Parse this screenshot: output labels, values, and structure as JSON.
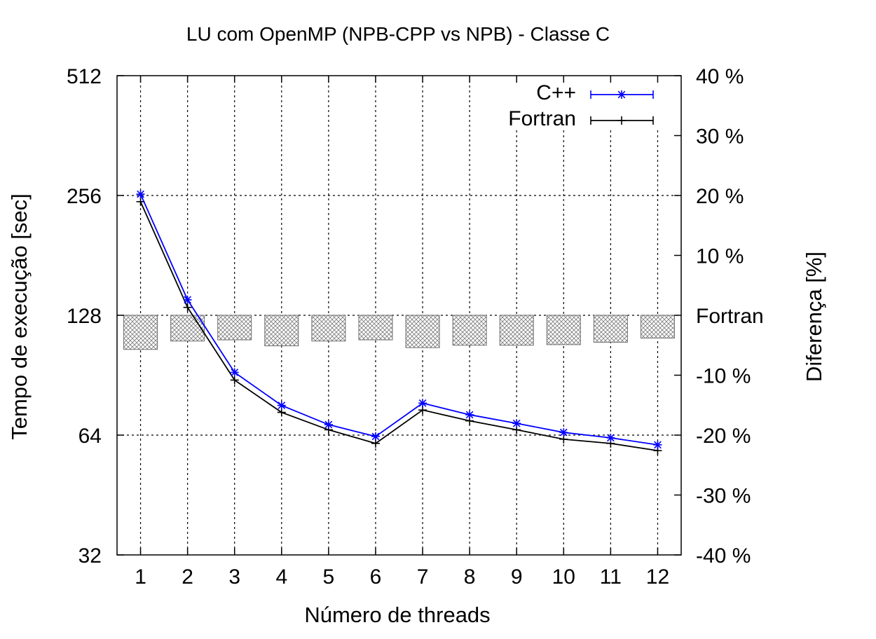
{
  "chart_data": {
    "type": "line",
    "title": "LU com OpenMP (NPB-CPP vs NPB) - Classe C",
    "xlabel": "Número de threads",
    "ylabel": "Tempo de execução [sec]",
    "y2label": "Diferença [%]",
    "categories": [
      "1",
      "2",
      "3",
      "4",
      "5",
      "6",
      "7",
      "8",
      "9",
      "10",
      "11",
      "12"
    ],
    "y_scale": "log2",
    "ylim": [
      32,
      512
    ],
    "y_ticks": [
      "32",
      "64",
      "128",
      "256",
      "512"
    ],
    "y2lim": [
      -40,
      40
    ],
    "y2_ticks": [
      "-40 %",
      "-30 %",
      "-20 %",
      "-10 %",
      "Fortran",
      "10 %",
      "20 %",
      "30 %",
      "40 %"
    ],
    "grid": true,
    "legend_position": "top-right",
    "series": [
      {
        "name": "C++",
        "color": "#0000ff",
        "marker": "asterisk",
        "values": [
          258,
          140,
          92,
          76,
          68,
          63.5,
          77,
          72,
          68.5,
          65,
          63,
          60.5
        ]
      },
      {
        "name": "Fortran",
        "color": "#000000",
        "marker": "plus",
        "values": [
          247,
          134,
          88,
          73,
          66,
          61,
          74,
          69.5,
          66,
          62.5,
          61,
          58.5
        ]
      }
    ],
    "difference_bars": {
      "axis": "y2",
      "fill": "crosshatch",
      "values": [
        -5.7,
        -4.3,
        -4.1,
        -5.1,
        -4.3,
        -4.1,
        -5.4,
        -5.0,
        -5.0,
        -4.9,
        -4.5,
        -3.8
      ]
    }
  }
}
